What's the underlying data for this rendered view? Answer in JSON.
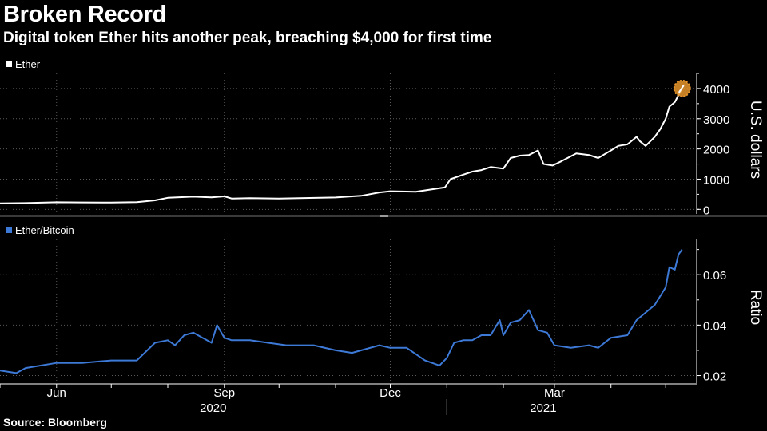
{
  "header": {
    "title": "Broken Record",
    "subtitle": "Digital token Ether hits another peak, breaching $4,000 for first time"
  },
  "footer": {
    "source": "Source: Bloomberg"
  },
  "colors": {
    "background": "#000000",
    "ether_line": "#ffffff",
    "ratio_line": "#3d79d6",
    "highlight": "#e8962b",
    "grid": "#5a5a5a"
  },
  "chart_data": [
    {
      "type": "line",
      "panel": "top",
      "legend": "Ether",
      "ylabel": "U.S. dollars",
      "ylim": [
        -150,
        4500
      ],
      "yticks": [
        0,
        1000,
        2000,
        3000,
        4000
      ],
      "ytick_labels": [
        "0",
        "1000",
        "2000",
        "3000",
        "4000"
      ],
      "grid": true,
      "highlight_last_point": true,
      "series": [
        {
          "x": [
            "2020-05-01",
            "2020-05-15",
            "2020-06-01",
            "2020-06-15",
            "2020-07-01",
            "2020-07-15",
            "2020-07-25",
            "2020-08-01",
            "2020-08-15",
            "2020-08-25",
            "2020-09-01",
            "2020-09-05",
            "2020-09-15",
            "2020-10-01",
            "2020-10-15",
            "2020-11-01",
            "2020-11-15",
            "2020-11-25",
            "2020-12-01",
            "2020-12-15",
            "2020-12-31",
            "2021-01-03",
            "2021-01-10",
            "2021-01-15",
            "2021-01-20",
            "2021-01-25",
            "2021-02-01",
            "2021-02-05",
            "2021-02-10",
            "2021-02-15",
            "2021-02-20",
            "2021-02-23",
            "2021-02-28",
            "2021-03-05",
            "2021-03-13",
            "2021-03-20",
            "2021-03-25",
            "2021-04-01",
            "2021-04-05",
            "2021-04-10",
            "2021-04-15",
            "2021-04-17",
            "2021-04-20",
            "2021-04-25",
            "2021-04-28",
            "2021-05-01",
            "2021-05-03",
            "2021-05-06",
            "2021-05-10"
          ],
          "values": [
            200,
            210,
            235,
            230,
            225,
            240,
            300,
            385,
            420,
            400,
            430,
            360,
            370,
            360,
            375,
            395,
            450,
            560,
            600,
            585,
            730,
            1000,
            1150,
            1250,
            1300,
            1400,
            1350,
            1700,
            1780,
            1800,
            1950,
            1500,
            1450,
            1600,
            1850,
            1800,
            1700,
            1950,
            2100,
            2150,
            2400,
            2250,
            2100,
            2400,
            2650,
            3000,
            3400,
            3550,
            4000
          ]
        }
      ]
    },
    {
      "type": "line",
      "panel": "bottom",
      "legend": "Ether/Bitcoin",
      "ylabel": "Ratio",
      "ylim": [
        0.017,
        0.074
      ],
      "yticks": [
        0.02,
        0.04,
        0.06
      ],
      "ytick_labels": [
        "0.02",
        "0.04",
        "0.06"
      ],
      "grid": true,
      "series": [
        {
          "x": [
            "2020-05-01",
            "2020-05-10",
            "2020-05-15",
            "2020-06-01",
            "2020-06-15",
            "2020-07-01",
            "2020-07-15",
            "2020-07-25",
            "2020-08-01",
            "2020-08-05",
            "2020-08-10",
            "2020-08-15",
            "2020-08-20",
            "2020-08-25",
            "2020-08-28",
            "2020-09-01",
            "2020-09-05",
            "2020-09-15",
            "2020-09-25",
            "2020-10-05",
            "2020-10-20",
            "2020-11-01",
            "2020-11-10",
            "2020-11-25",
            "2020-12-01",
            "2020-12-10",
            "2020-12-20",
            "2020-12-28",
            "2021-01-01",
            "2021-01-05",
            "2021-01-10",
            "2021-01-15",
            "2021-01-20",
            "2021-01-25",
            "2021-01-30",
            "2021-02-01",
            "2021-02-05",
            "2021-02-10",
            "2021-02-15",
            "2021-02-20",
            "2021-02-25",
            "2021-03-01",
            "2021-03-10",
            "2021-03-20",
            "2021-03-25",
            "2021-04-01",
            "2021-04-10",
            "2021-04-15",
            "2021-04-20",
            "2021-04-25",
            "2021-05-01",
            "2021-05-03",
            "2021-05-06",
            "2021-05-08",
            "2021-05-10"
          ],
          "values": [
            0.022,
            0.021,
            0.023,
            0.025,
            0.025,
            0.026,
            0.026,
            0.033,
            0.034,
            0.032,
            0.036,
            0.037,
            0.035,
            0.033,
            0.04,
            0.035,
            0.034,
            0.034,
            0.033,
            0.032,
            0.032,
            0.03,
            0.029,
            0.032,
            0.031,
            0.031,
            0.026,
            0.024,
            0.027,
            0.033,
            0.034,
            0.034,
            0.036,
            0.036,
            0.042,
            0.036,
            0.041,
            0.042,
            0.046,
            0.038,
            0.037,
            0.032,
            0.031,
            0.032,
            0.031,
            0.035,
            0.036,
            0.042,
            0.045,
            0.048,
            0.055,
            0.063,
            0.062,
            0.068,
            0.07
          ]
        }
      ]
    }
  ],
  "x_axis": {
    "month_ticks": [
      {
        "label": "Jun",
        "date": "2020-06-01"
      },
      {
        "label": "Sep",
        "date": "2020-09-01"
      },
      {
        "label": "Dec",
        "date": "2020-12-01"
      },
      {
        "label": "Mar",
        "date": "2021-03-01"
      }
    ],
    "year_labels": [
      {
        "label": "2020",
        "date": "2020-09-01"
      },
      {
        "label": "2021",
        "date": "2021-03-01"
      }
    ],
    "year_divider": "2021-01-01",
    "x_start": "2020-05-01",
    "x_end": "2021-05-18"
  }
}
